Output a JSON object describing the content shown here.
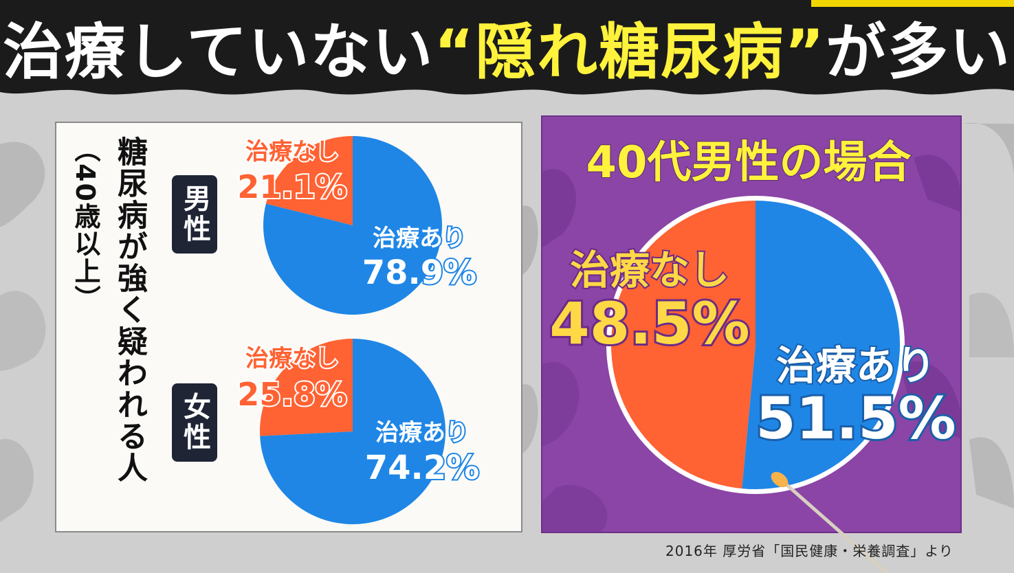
{
  "title": {
    "part1": "治療していない",
    "highlight": "“隠れ糖尿病”",
    "part2": "が多い"
  },
  "left_panel": {
    "caption_main": "糖尿病が強く疑われる人",
    "caption_sub": "（40歳以上）",
    "male_label": "男性",
    "female_label": "女性"
  },
  "right_panel": {
    "title": "40代男性の場合"
  },
  "source": "2016年 厚労省「国民健康・栄養調査」より",
  "colors": {
    "untreated": "#ff6233",
    "treated": "#1f86e6",
    "purple_panel": "#8a45a6",
    "title_highlight": "#fff23c"
  },
  "chart_data": [
    {
      "type": "pie",
      "title": "男性",
      "slices": [
        {
          "label": "治療なし",
          "value": 21.1,
          "value_text": "21.1%",
          "color": "#ff6233"
        },
        {
          "label": "治療あり",
          "value": 78.9,
          "value_text": "78.9%",
          "color": "#1f86e6"
        }
      ]
    },
    {
      "type": "pie",
      "title": "女性",
      "slices": [
        {
          "label": "治療なし",
          "value": 25.8,
          "value_text": "25.8%",
          "color": "#ff6233"
        },
        {
          "label": "治療あり",
          "value": 74.2,
          "value_text": "74.2%",
          "color": "#1f86e6"
        }
      ]
    },
    {
      "type": "pie",
      "title": "40代男性の場合",
      "slices": [
        {
          "label": "治療なし",
          "value": 48.5,
          "value_text": "48.5%",
          "color": "#ff6233"
        },
        {
          "label": "治療あり",
          "value": 51.5,
          "value_text": "51.5%",
          "color": "#1f86e6"
        }
      ]
    }
  ]
}
